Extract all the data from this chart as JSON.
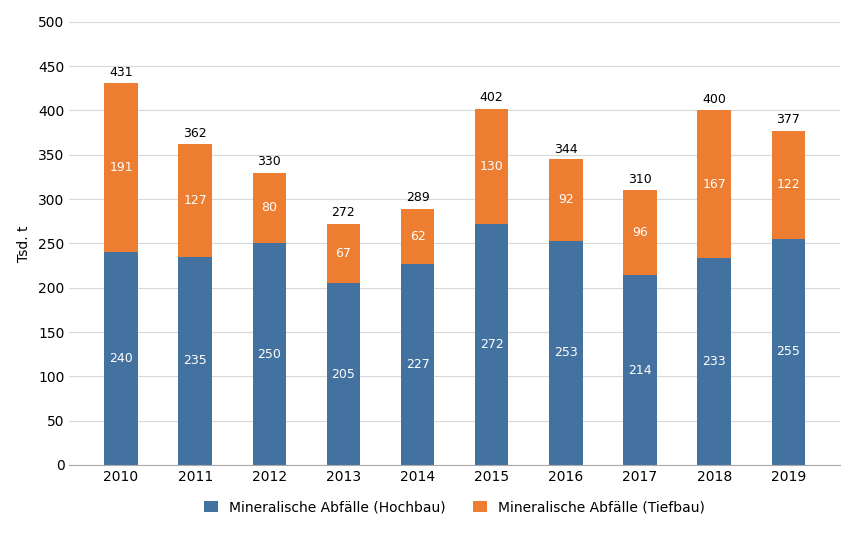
{
  "years": [
    "2010",
    "2011",
    "2012",
    "2013",
    "2014",
    "2015",
    "2016",
    "2017",
    "2018",
    "2019"
  ],
  "hochbau": [
    240,
    235,
    250,
    205,
    227,
    272,
    253,
    214,
    233,
    255
  ],
  "tiefbau": [
    191,
    127,
    80,
    67,
    62,
    130,
    92,
    96,
    167,
    122
  ],
  "totals": [
    431,
    362,
    330,
    272,
    289,
    402,
    344,
    310,
    400,
    377
  ],
  "hochbau_color": "#4472a0",
  "tiefbau_color": "#ed7d31",
  "legend_hochbau": "Mineralische Abfälle (Hochbau)",
  "legend_tiefbau": "Mineralische Abfälle (Tiefbau)",
  "ylabel": "Tsd. t",
  "ylim": [
    0,
    500
  ],
  "yticks": [
    0,
    50,
    100,
    150,
    200,
    250,
    300,
    350,
    400,
    450,
    500
  ],
  "background_color": "#ffffff",
  "grid_color": "#d9d9d9",
  "bar_width": 0.45,
  "label_fontsize": 9,
  "axis_fontsize": 10,
  "legend_fontsize": 10,
  "total_fontsize": 9
}
